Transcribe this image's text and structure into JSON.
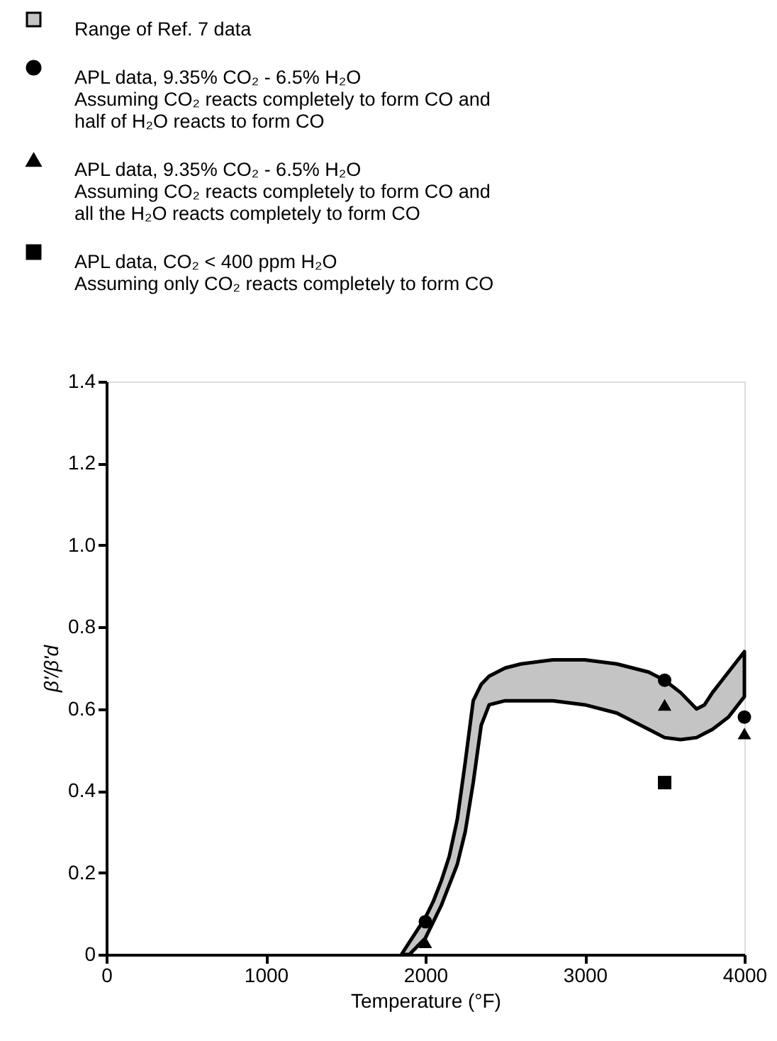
{
  "chart_data": {
    "type": "scatter",
    "xlabel": "Temperature (°F)",
    "ylabel": "β'/β'd",
    "xlim": [
      0,
      4000
    ],
    "xticks": [
      0,
      1000,
      2000,
      3000,
      4000
    ],
    "ylim": [
      0,
      1.4
    ],
    "yticks": [
      0,
      0.2,
      0.4,
      0.6,
      0.8,
      {
        "value": 1.0,
        "label": "1.0"
      },
      1.2,
      1.4
    ],
    "grid": false,
    "legend": "top",
    "series": [
      {
        "name": "Range of Ref. 7 data",
        "type": "area",
        "color": "#c4c4c4",
        "x": [
          1850,
          1900,
          1950,
          2000,
          2050,
          2100,
          2150,
          2200,
          2250,
          2300,
          2350,
          2400,
          2500,
          2600,
          2800,
          3000,
          3200,
          3400,
          3500,
          3600,
          3700,
          3750,
          3800,
          3900,
          4000
        ],
        "values": [
          null,
          null,
          null,
          null,
          null,
          null,
          null,
          null,
          null,
          null,
          null,
          null,
          null,
          null,
          null,
          null,
          null,
          null,
          null,
          null,
          null,
          null,
          null,
          null,
          null
        ],
        "upper": [
          0,
          0.03,
          0.06,
          0.09,
          0.13,
          0.18,
          0.24,
          0.33,
          0.47,
          0.62,
          0.66,
          0.68,
          0.7,
          0.71,
          0.72,
          0.72,
          0.71,
          0.69,
          0.67,
          0.64,
          0.6,
          0.61,
          0.64,
          0.69,
          0.74
        ],
        "lower": [
          0,
          0,
          0.02,
          0.04,
          0.08,
          0.12,
          0.17,
          0.22,
          0.3,
          0.42,
          0.56,
          0.61,
          0.62,
          0.62,
          0.62,
          0.61,
          0.59,
          0.55,
          0.53,
          0.525,
          0.53,
          0.54,
          0.55,
          0.58,
          0.63
        ]
      },
      {
        "name": "APL data, 9.35% CO₂ - 6.5% H₂O\nAssuming CO₂ reacts completely to form CO and\nhalf of H₂O reacts to form CO",
        "marker": "circle",
        "color": "#000000",
        "x": [
          2000,
          3500,
          4000
        ],
        "values": [
          0.08,
          0.67,
          0.58
        ]
      },
      {
        "name": "APL data, 9.35% CO₂ - 6.5% H₂O\nAssuming CO₂ reacts completely to form CO and\nall the H₂O reacts completely to form CO",
        "marker": "triangle",
        "color": "#000000",
        "x": [
          2000,
          3500,
          4000
        ],
        "values": [
          0.03,
          0.61,
          0.54
        ]
      },
      {
        "name": "APL data, CO₂ < 400 ppm H₂O\n\nAssuming only CO₂ reacts completely to form CO",
        "marker": "square",
        "color": "#000000",
        "x": [
          3500
        ],
        "values": [
          0.42
        ]
      }
    ]
  }
}
